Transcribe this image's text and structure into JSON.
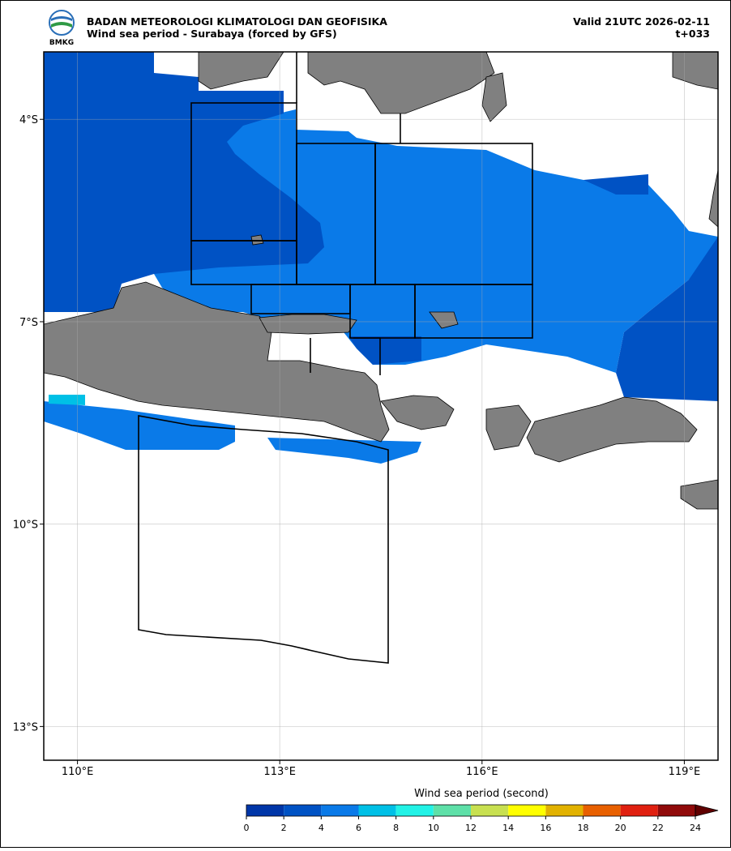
{
  "header": {
    "logo_text": "BMKG",
    "title": "BADAN METEOROLOGI KLIMATOLOGI DAN GEOFISIKA",
    "subtitle": "Wind sea period - Surabaya (forced by GFS)",
    "valid": "Valid 21UTC 2026-02-11",
    "lead": "t+033"
  },
  "map": {
    "xlim": [
      109.5,
      119.5
    ],
    "ylim": [
      -13.5,
      -3
    ],
    "xticks": [
      {
        "value": 110,
        "label": "110°E"
      },
      {
        "value": 113,
        "label": "113°E"
      },
      {
        "value": 116,
        "label": "116°E"
      },
      {
        "value": 119,
        "label": "119°E"
      }
    ],
    "yticks": [
      {
        "value": -4,
        "label": "4°S"
      },
      {
        "value": -7,
        "label": "7°S"
      },
      {
        "value": -10,
        "label": "10°S"
      },
      {
        "value": -13,
        "label": "13°S"
      }
    ],
    "grid": true
  },
  "colorbar": {
    "label": "Wind sea period (second)",
    "bins": [
      0,
      2,
      4,
      6,
      8,
      10,
      12,
      14,
      16,
      18,
      20,
      22,
      24
    ],
    "colors": [
      "#0036a8",
      "#0052c4",
      "#0a7ae8",
      "#00c0e6",
      "#22f2e6",
      "#5ee0a8",
      "#c8e050",
      "#ffff00",
      "#e2b200",
      "#e86000",
      "#e02010",
      "#900a0a"
    ],
    "extend_color": "#600000"
  }
}
